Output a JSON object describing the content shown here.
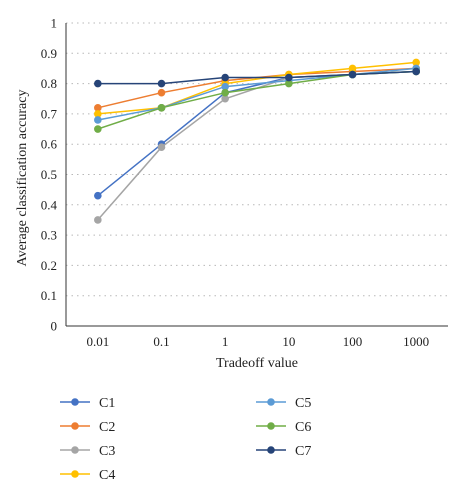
{
  "chart_data": {
    "type": "line",
    "xlabel": "Tradeoff value",
    "ylabel": "Average classification accuracy",
    "categories": [
      "0.01",
      "0.1",
      "1",
      "10",
      "100",
      "1000"
    ],
    "ylim": [
      0,
      1
    ],
    "yticks": [
      "0",
      "0.1",
      "0.2",
      "0.3",
      "0.4",
      "0.5",
      "0.6",
      "0.7",
      "0.8",
      "0.9",
      "1"
    ],
    "grid": "horizontal dotted",
    "legend_position": "bottom",
    "series": [
      {
        "name": "C1",
        "color": "#4472c4",
        "values": [
          0.43,
          0.6,
          0.77,
          0.82,
          0.83,
          0.84
        ]
      },
      {
        "name": "C2",
        "color": "#ed7d31",
        "values": [
          0.72,
          0.77,
          0.81,
          0.83,
          0.84,
          0.85
        ]
      },
      {
        "name": "C3",
        "color": "#a5a5a5",
        "values": [
          0.35,
          0.59,
          0.75,
          0.82,
          0.83,
          0.84
        ]
      },
      {
        "name": "C4",
        "color": "#ffc000",
        "values": [
          0.7,
          0.72,
          0.8,
          0.83,
          0.85,
          0.87
        ]
      },
      {
        "name": "C5",
        "color": "#5b9bd5",
        "values": [
          0.68,
          0.72,
          0.79,
          0.81,
          0.83,
          0.85
        ]
      },
      {
        "name": "C6",
        "color": "#70ad47",
        "values": [
          0.65,
          0.72,
          0.77,
          0.8,
          0.83,
          0.84
        ]
      },
      {
        "name": "C7",
        "color": "#264478",
        "values": [
          0.8,
          0.8,
          0.82,
          0.82,
          0.83,
          0.84
        ]
      }
    ]
  }
}
